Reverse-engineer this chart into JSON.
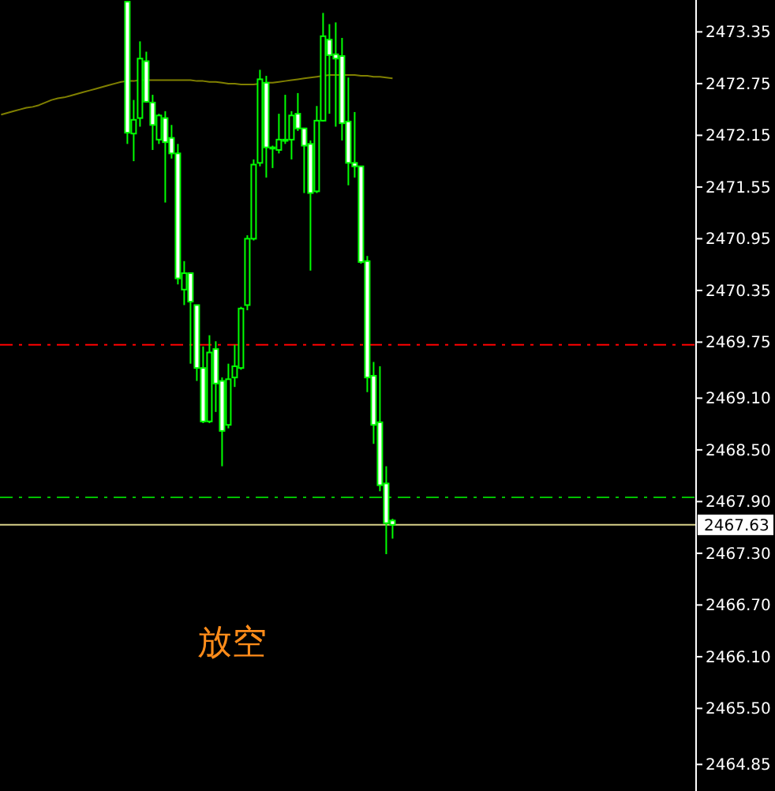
{
  "chart_data": {
    "type": "candlestick",
    "categories": [
      null,
      null,
      null,
      null,
      null,
      null,
      null,
      null,
      null,
      null,
      null,
      null,
      null,
      null,
      null,
      null,
      null,
      null,
      null,
      null,
      null,
      null,
      null,
      null,
      null,
      null,
      null,
      null,
      null,
      null,
      null,
      null,
      null,
      null,
      null,
      null,
      null,
      null,
      null,
      null,
      null,
      null,
      null,
      null,
      null,
      null,
      null,
      null,
      null,
      null,
      null,
      null,
      null,
      null,
      null,
      null,
      null,
      null,
      null,
      null,
      null,
      null,
      null,
      null,
      null,
      null,
      null,
      null,
      null,
      null,
      null,
      null,
      null,
      null,
      null,
      null,
      null,
      null,
      null,
      null,
      null,
      null,
      null,
      null,
      null,
      null,
      null,
      null,
      null,
      null,
      null,
      null,
      null,
      null,
      null,
      null,
      null,
      null,
      null,
      null,
      null,
      null,
      null,
      null,
      null,
      null,
      null,
      null,
      null,
      null
    ],
    "series": [
      {
        "type": "candlestick",
        "color": "#00ff00",
        "ohlc": [
          null,
          null,
          null,
          null,
          null,
          null,
          null,
          null,
          null,
          null,
          null,
          null,
          null,
          null,
          null,
          null,
          null,
          null,
          null,
          null,
          [
            2473.7,
            2473.7,
            2472.05,
            2472.18
          ],
          [
            2472.17,
            2472.56,
            2471.85,
            2472.33
          ],
          [
            2472.35,
            2473.24,
            2472.25,
            2473.04
          ],
          [
            2473.01,
            2473.12,
            2472.53,
            2472.54
          ],
          [
            2472.53,
            2472.62,
            2471.98,
            2472.27
          ],
          [
            2472.1,
            2472.4,
            2472.05,
            2472.38
          ],
          [
            2472.35,
            2472.43,
            2471.37,
            2472.07
          ],
          [
            2472.12,
            2472.27,
            2471.88,
            2471.94
          ],
          [
            2471.94,
            2472.05,
            2470.42,
            2470.49
          ],
          [
            2470.36,
            2470.69,
            2470.18,
            2470.55
          ],
          [
            2470.55,
            2470.55,
            2469.5,
            2470.22
          ],
          [
            2470.18,
            2470.18,
            2469.3,
            2469.45
          ],
          [
            2469.45,
            2469.7,
            2468.81,
            2468.83
          ],
          [
            2468.83,
            2469.83,
            2468.81,
            2469.63
          ],
          [
            2469.67,
            2469.76,
            2468.94,
            2469.27
          ],
          [
            2469.3,
            2469.34,
            2468.31,
            2468.72
          ],
          [
            2468.79,
            2469.5,
            2468.75,
            2469.32
          ],
          [
            2469.34,
            2469.72,
            2469.23,
            2469.47
          ],
          [
            2469.45,
            2470.16,
            2469.43,
            2470.14
          ],
          [
            2470.18,
            2470.99,
            2470.12,
            2470.95
          ],
          [
            2470.95,
            2471.87,
            2470.93,
            2471.81
          ],
          [
            2471.83,
            2472.91,
            2471.79,
            2472.8
          ],
          [
            2472.76,
            2472.84,
            2471.66,
            2472.01
          ],
          [
            2472.01,
            2472.03,
            2471.77,
            2472.01
          ],
          [
            2471.98,
            2472.4,
            2471.94,
            2472.1
          ],
          [
            2472.1,
            2472.62,
            2472.05,
            2472.1
          ],
          [
            2472.1,
            2472.43,
            2471.87,
            2472.38
          ],
          [
            2472.4,
            2472.64,
            2472.2,
            2472.23
          ],
          [
            2472.23,
            2472.23,
            2471.48,
            2472.03
          ],
          [
            2472.05,
            2472.09,
            2470.58,
            2471.48
          ],
          [
            2471.5,
            2472.49,
            2471.48,
            2472.32
          ],
          [
            2472.32,
            2473.57,
            2472.31,
            2473.3
          ],
          [
            2473.26,
            2473.44,
            2472.4,
            2473.08
          ],
          [
            2473.09,
            2473.46,
            2472.25,
            2473.04
          ],
          [
            2473.07,
            2473.28,
            2472.09,
            2472.29
          ],
          [
            2472.31,
            2472.82,
            2471.57,
            2471.83
          ],
          [
            2471.83,
            2472.42,
            2471.66,
            2471.79
          ],
          [
            2471.79,
            2471.79,
            2470.66,
            2470.68
          ],
          [
            2470.69,
            2470.75,
            2469.17,
            2469.34
          ],
          [
            2469.36,
            2469.52,
            2468.57,
            2468.79
          ],
          [
            2468.82,
            2469.47,
            2468.02,
            2468.09
          ],
          [
            2468.11,
            2468.31,
            2467.29,
            2467.65
          ],
          [
            2467.68,
            2467.7,
            2467.47,
            2467.63
          ],
          null,
          null,
          null,
          null,
          null,
          null,
          null,
          null,
          null,
          null,
          null,
          null,
          null,
          null,
          null,
          null,
          null,
          null,
          null,
          null,
          null,
          null,
          null,
          null,
          null,
          null,
          null,
          null,
          null,
          null,
          null,
          null,
          null,
          null,
          null,
          null,
          null,
          null,
          null,
          null,
          null,
          null,
          null,
          null,
          null,
          null,
          null
        ]
      },
      {
        "type": "line",
        "color": "#808000",
        "values": [
          2472.39,
          2472.41,
          2472.43,
          2472.45,
          2472.47,
          2472.48,
          2472.5,
          2472.53,
          2472.56,
          2472.58,
          2472.59,
          2472.61,
          2472.63,
          2472.65,
          2472.67,
          2472.69,
          2472.71,
          2472.73,
          2472.75,
          2472.77,
          2472.78,
          2472.78,
          2472.79,
          2472.79,
          2472.79,
          2472.79,
          2472.79,
          2472.79,
          2472.79,
          2472.79,
          2472.79,
          2472.78,
          2472.78,
          2472.77,
          2472.77,
          2472.76,
          2472.75,
          2472.75,
          2472.74,
          2472.74,
          2472.74,
          2472.75,
          2472.76,
          2472.76,
          2472.77,
          2472.78,
          2472.79,
          2472.8,
          2472.81,
          2472.82,
          2472.83,
          2472.84,
          2472.85,
          2472.85,
          2472.85,
          2472.85,
          2472.85,
          2472.84,
          2472.84,
          2472.83,
          2472.83,
          2472.82,
          2472.81,
          null,
          null,
          null,
          null,
          null,
          null,
          null,
          null,
          null,
          null,
          null,
          null,
          null,
          null,
          null,
          null,
          null,
          null,
          null,
          null,
          null,
          null,
          null,
          null,
          null,
          null,
          null,
          null,
          null,
          null,
          null,
          null,
          null,
          null,
          null,
          null,
          null,
          null,
          null,
          null,
          null,
          null,
          null,
          null,
          null,
          null,
          null
        ]
      }
    ],
    "ylim": [
      2464.56,
      2473.72
    ],
    "yticks": [
      2473.35,
      2472.75,
      2472.15,
      2471.55,
      2470.95,
      2470.35,
      2469.75,
      {
        "value": 2469.1,
        "label": "2469.10"
      },
      {
        "value": 2468.5,
        "label": "2468.50"
      },
      {
        "value": 2467.9,
        "label": "2467.90"
      },
      {
        "value": 2467.3,
        "label": "2467.30"
      },
      {
        "value": 2466.7,
        "label": "2466.70"
      },
      {
        "value": 2466.1,
        "label": "2466.10"
      },
      {
        "value": 2465.5,
        "label": "2465.50"
      },
      2464.85
    ],
    "tick_labels": "y",
    "grid": false,
    "ref_lines": [
      {
        "axis": "y",
        "value": 2469.72,
        "color": "#ff0000",
        "line_style": "dashed"
      },
      {
        "axis": "y",
        "value": 2467.95,
        "color": "#00c000",
        "line_style": "dashed"
      },
      {
        "axis": "y",
        "value": 2467.63,
        "label": "2467.63",
        "color": "#d8d08a",
        "line_style": "solid"
      }
    ],
    "annotations": [
      "放空"
    ]
  }
}
